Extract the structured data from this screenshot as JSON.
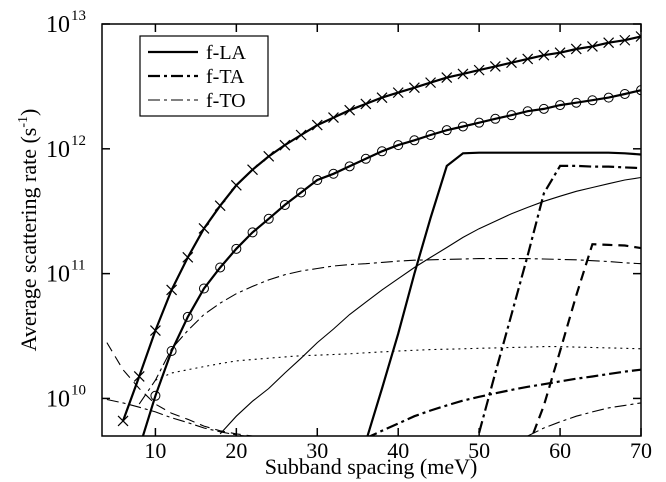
{
  "chart_data": {
    "type": "line",
    "xlabel": "Subband spacing (meV)",
    "ylabel": [
      "Average scattering rate (s",
      "-1",
      ")"
    ],
    "ylog": true,
    "xlim": [
      3.4,
      70
    ],
    "ylim": [
      5000000000.0,
      10000000000000.0
    ],
    "xticks": [
      10,
      20,
      30,
      40,
      50,
      60,
      70
    ],
    "yticks": [
      {
        "value": 10000000000.0,
        "label": "10",
        "exponent": "10"
      },
      {
        "value": 100000000000.0,
        "label": "10",
        "exponent": "11"
      },
      {
        "value": 1000000000000.0,
        "label": "10",
        "exponent": "12"
      },
      {
        "value": 10000000000000.0,
        "label": "10",
        "exponent": "13"
      }
    ],
    "legend": "upper left",
    "x": [
      4,
      6,
      8,
      10,
      12,
      14,
      16,
      18,
      20,
      22,
      24,
      26,
      28,
      30,
      32,
      34,
      36,
      38,
      40,
      42,
      44,
      46,
      48,
      50,
      52,
      54,
      56,
      58,
      60,
      62,
      64,
      66,
      68,
      70
    ],
    "series": [
      {
        "color": "#000000",
        "dash": "solid",
        "weight": "thick",
        "marker": "x",
        "values": [
          null,
          6600000000.0,
          15000000000.0,
          35000000000.0,
          74000000000.0,
          135000000000.0,
          230000000000.0,
          350000000000.0,
          510000000000.0,
          680000000000.0,
          870000000000.0,
          1070000000000.0,
          1290000000000.0,
          1550000000000.0,
          1780000000000.0,
          2040000000000.0,
          2290000000000.0,
          2570000000000.0,
          2820000000000.0,
          3090000000000.0,
          3390000000000.0,
          3720000000000.0,
          3980000000000.0,
          4270000000000.0,
          4570000000000.0,
          4900000000000.0,
          5250000000000.0,
          5620000000000.0,
          5890000000000.0,
          6310000000000.0,
          6610000000000.0,
          7080000000000.0,
          7410000000000.0,
          7940000000000.0
        ]
      },
      {
        "color": "#000000",
        "dash": "solid",
        "weight": "thick",
        "marker": "o",
        "values": [
          null,
          null,
          4000000000.0,
          10500000000.0,
          24000000000.0,
          45000000000.0,
          76000000000.0,
          112000000000.0,
          158000000000.0,
          214000000000.0,
          275000000000.0,
          355000000000.0,
          447000000000.0,
          562000000000.0,
          631000000000.0,
          724000000000.0,
          832000000000.0,
          955000000000.0,
          1070000000000.0,
          1170000000000.0,
          1290000000000.0,
          1410000000000.0,
          1510000000000.0,
          1620000000000.0,
          1740000000000.0,
          1860000000000.0,
          2000000000000.0,
          2090000000000.0,
          2240000000000.0,
          2340000000000.0,
          2450000000000.0,
          2570000000000.0,
          2750000000000.0,
          2950000000000.0
        ]
      },
      {
        "color": "#000000",
        "dash": "solid",
        "weight": "thin",
        "values": [
          null,
          null,
          null,
          null,
          null,
          null,
          null,
          5200000000.0,
          7200000000.0,
          9500000000.0,
          12000000000.0,
          16000000000.0,
          21000000000.0,
          28000000000.0,
          36000000000.0,
          47000000000.0,
          59000000000.0,
          74000000000.0,
          91000000000.0,
          112000000000.0,
          135000000000.0,
          162000000000.0,
          195000000000.0,
          229000000000.0,
          263000000000.0,
          302000000000.0,
          339000000000.0,
          380000000000.0,
          417000000000.0,
          457000000000.0,
          490000000000.0,
          525000000000.0,
          562000000000.0,
          589000000000.0
        ]
      },
      {
        "name": "f-LA",
        "color": "#000000",
        "dash": "solid",
        "weight": "thick",
        "values": [
          null,
          null,
          null,
          null,
          null,
          null,
          null,
          null,
          null,
          null,
          null,
          null,
          null,
          null,
          null,
          null,
          4500000000.0,
          12000000000.0,
          33000000000.0,
          100000000000.0,
          280000000000.0,
          730000000000.0,
          920000000000.0,
          930000000000.0,
          930000000000.0,
          930000000000.0,
          930000000000.0,
          930000000000.0,
          930000000000.0,
          930000000000.0,
          930000000000.0,
          930000000000.0,
          920000000000.0,
          900000000000.0
        ]
      },
      {
        "name": "f-TA",
        "color": "#000000",
        "dash": "dash-dot",
        "weight": "thick",
        "values": [
          null,
          null,
          null,
          null,
          null,
          null,
          null,
          null,
          null,
          null,
          null,
          null,
          null,
          null,
          null,
          null,
          null,
          null,
          null,
          null,
          null,
          null,
          null,
          5300000000.0,
          16000000000.0,
          47000000000.0,
          140000000000.0,
          440000000000.0,
          730000000000.0,
          730000000000.0,
          720000000000.0,
          720000000000.0,
          710000000000.0,
          700000000000.0
        ]
      },
      {
        "name": "f-TO",
        "color": "#000000",
        "dash": "dash-dot",
        "weight": "thin",
        "values": [
          null,
          null,
          null,
          null,
          null,
          null,
          null,
          null,
          null,
          null,
          null,
          null,
          null,
          null,
          null,
          null,
          null,
          null,
          null,
          null,
          null,
          null,
          null,
          null,
          null,
          null,
          5000000000.0,
          5800000000.0,
          6500000000.0,
          7200000000.0,
          7800000000.0,
          8400000000.0,
          8800000000.0,
          9200000000.0
        ]
      },
      {
        "color": "#000000",
        "dash": "dashed",
        "weight": "thick",
        "values": [
          null,
          null,
          null,
          null,
          null,
          null,
          null,
          null,
          null,
          null,
          null,
          null,
          null,
          null,
          null,
          null,
          null,
          null,
          null,
          null,
          null,
          null,
          null,
          null,
          null,
          null,
          4000000000.0,
          8800000000.0,
          24000000000.0,
          67000000000.0,
          172000000000.0,
          170000000000.0,
          168000000000.0,
          160000000000.0
        ]
      },
      {
        "color": "#000000",
        "dash": "dash-dot",
        "weight": "thin",
        "values": [
          null,
          null,
          9000000000.0,
          14000000000.0,
          25000000000.0,
          35000000000.0,
          47000000000.0,
          58000000000.0,
          69000000000.0,
          79000000000.0,
          89000000000.0,
          98000000000.0,
          105000000000.0,
          110000000000.0,
          115000000000.0,
          118000000000.0,
          120000000000.0,
          123000000000.0,
          126000000000.0,
          128000000000.0,
          129000000000.0,
          130000000000.0,
          131000000000.0,
          132000000000.0,
          132000000000.0,
          132000000000.0,
          132000000000.0,
          131000000000.0,
          130000000000.0,
          129000000000.0,
          127000000000.0,
          125000000000.0,
          122000000000.0,
          120000000000.0
        ]
      },
      {
        "color": "#000000",
        "dash": "dotted",
        "weight": "thin",
        "values": [
          null,
          null,
          null,
          14000000000.0,
          16000000000.0,
          17000000000.0,
          18000000000.0,
          19000000000.0,
          20000000000.0,
          20500000000.0,
          21000000000.0,
          21500000000.0,
          22000000000.0,
          22200000000.0,
          22500000000.0,
          22800000000.0,
          23200000000.0,
          23600000000.0,
          24000000000.0,
          24300000000.0,
          24600000000.0,
          24800000000.0,
          25000000000.0,
          25200000000.0,
          25400000000.0,
          25600000000.0,
          25800000000.0,
          26000000000.0,
          26000000000.0,
          25800000000.0,
          25600000000.0,
          25400000000.0,
          25200000000.0,
          25000000000.0
        ]
      },
      {
        "color": "#000000",
        "dash": "dashed",
        "weight": "thin",
        "values": [
          28000000000.0,
          17000000000.0,
          12000000000.0,
          9000000000.0,
          7600000000.0,
          6800000000.0,
          6000000000.0,
          5500000000.0,
          5200000000.0,
          5000000000.0,
          4800000000.0,
          null,
          null,
          null,
          null,
          null,
          null,
          null,
          null,
          null,
          null,
          null,
          null,
          null,
          null,
          null,
          null,
          null,
          null,
          null,
          null,
          null,
          null,
          null
        ]
      },
      {
        "color": "#000000",
        "dash": "dash-dot",
        "weight": "thin",
        "values": [
          9800000000.0,
          9200000000.0,
          8500000000.0,
          7800000000.0,
          7000000000.0,
          6400000000.0,
          5800000000.0,
          5400000000.0,
          5100000000.0,
          4900000000.0,
          null,
          null,
          null,
          null,
          null,
          null,
          null,
          null,
          null,
          null,
          null,
          null,
          null,
          null,
          null,
          null,
          null,
          null,
          null,
          null,
          null,
          null,
          null,
          null
        ]
      },
      {
        "color": "#000000",
        "dash": "dash-dot",
        "weight": "thick",
        "values": [
          null,
          null,
          null,
          null,
          null,
          null,
          null,
          null,
          null,
          null,
          null,
          null,
          null,
          null,
          null,
          null,
          4800000000.0,
          5500000000.0,
          6300000000.0,
          7200000000.0,
          8000000000.0,
          8800000000.0,
          9600000000.0,
          10300000000.0,
          11000000000.0,
          11700000000.0,
          12400000000.0,
          13000000000.0,
          13700000000.0,
          14400000000.0,
          15000000000.0,
          15700000000.0,
          16400000000.0,
          17000000000.0
        ]
      }
    ]
  }
}
